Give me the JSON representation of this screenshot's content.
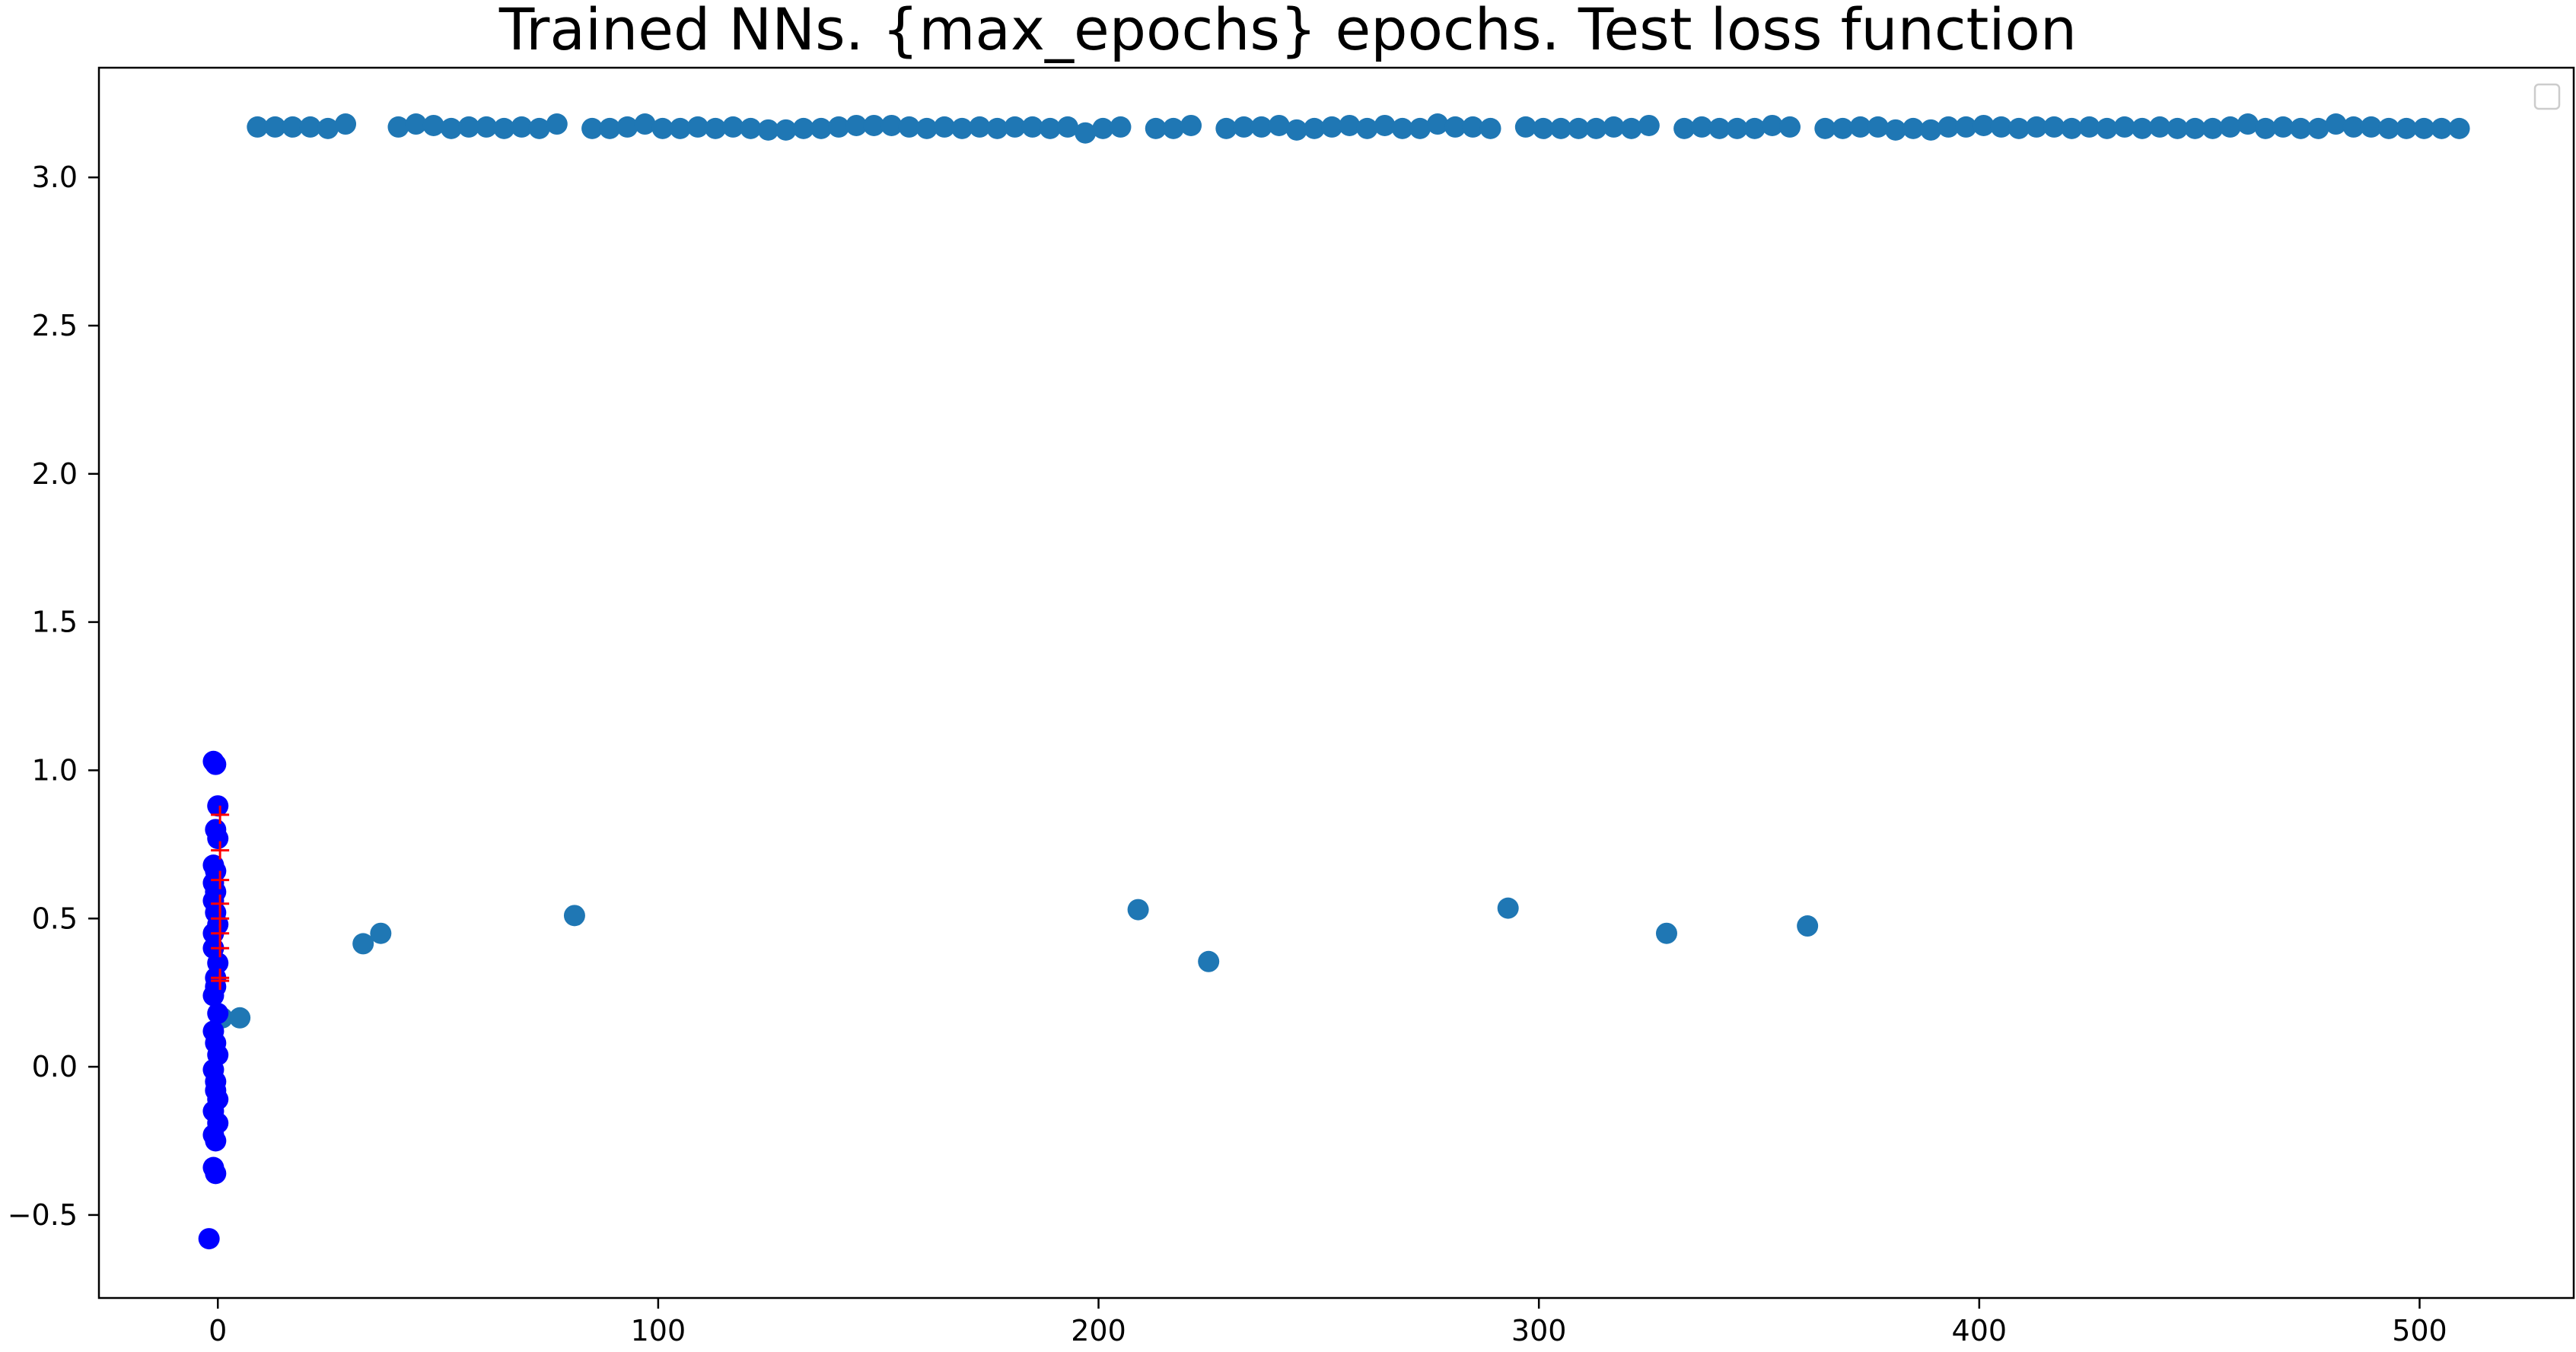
{
  "chart_data": {
    "type": "scatter",
    "title": "Trained NNs. {max_epochs} epochs. Test loss function",
    "xlabel": "",
    "ylabel": "",
    "xlim": [
      -27,
      535
    ],
    "ylim": [
      -0.78,
      3.37
    ],
    "x_ticks": [
      "0",
      "100",
      "200",
      "300",
      "400",
      "500"
    ],
    "x_tick_values": [
      0,
      100,
      200,
      300,
      400,
      500
    ],
    "y_ticks": [
      "−0.5",
      "0.0",
      "0.5",
      "1.0",
      "1.5",
      "2.0",
      "2.5",
      "3.0"
    ],
    "y_tick_values": [
      -0.5,
      0.0,
      0.5,
      1.0,
      1.5,
      2.0,
      2.5,
      3.0
    ],
    "grid": false,
    "legend": "top-right (empty)",
    "series": [
      {
        "color": "#1f77b4",
        "marker": "circle",
        "x": [
          9,
          13,
          17,
          21,
          25,
          29,
          41,
          45,
          49,
          53,
          57,
          61,
          65,
          69,
          73,
          77,
          85,
          89,
          93,
          97,
          101,
          105,
          109,
          113,
          117,
          121,
          125,
          129,
          133,
          137,
          141,
          145,
          149,
          153,
          157,
          161,
          165,
          169,
          173,
          177,
          181,
          185,
          189,
          193,
          197,
          201,
          205,
          213,
          217,
          221,
          229,
          233,
          237,
          241,
          245,
          249,
          253,
          257,
          261,
          265,
          269,
          273,
          277,
          281,
          285,
          289,
          297,
          301,
          305,
          309,
          313,
          317,
          321,
          325,
          333,
          337,
          341,
          345,
          349,
          353,
          357,
          365,
          369,
          373,
          377,
          381,
          385,
          389,
          393,
          397,
          401,
          405,
          409,
          413,
          417,
          421,
          425,
          429,
          433,
          437,
          441,
          445,
          449,
          453,
          457,
          461,
          465,
          469,
          473,
          477,
          481,
          485,
          489,
          493,
          497,
          501,
          505,
          509,
          1,
          5,
          33,
          37,
          81,
          209,
          225,
          293,
          329,
          361
        ],
        "y": [
          3.17,
          3.17,
          3.17,
          3.17,
          3.165,
          3.18,
          3.17,
          3.18,
          3.175,
          3.165,
          3.17,
          3.17,
          3.165,
          3.17,
          3.165,
          3.18,
          3.165,
          3.165,
          3.17,
          3.18,
          3.165,
          3.165,
          3.17,
          3.165,
          3.17,
          3.165,
          3.16,
          3.16,
          3.165,
          3.165,
          3.17,
          3.175,
          3.175,
          3.175,
          3.17,
          3.165,
          3.17,
          3.165,
          3.17,
          3.165,
          3.17,
          3.17,
          3.165,
          3.17,
          3.15,
          3.165,
          3.17,
          3.165,
          3.165,
          3.175,
          3.165,
          3.17,
          3.17,
          3.175,
          3.16,
          3.165,
          3.17,
          3.175,
          3.165,
          3.175,
          3.165,
          3.165,
          3.18,
          3.17,
          3.17,
          3.165,
          3.17,
          3.165,
          3.165,
          3.165,
          3.165,
          3.17,
          3.165,
          3.175,
          3.165,
          3.17,
          3.165,
          3.165,
          3.165,
          3.175,
          3.17,
          3.165,
          3.165,
          3.17,
          3.17,
          3.16,
          3.165,
          3.16,
          3.17,
          3.17,
          3.175,
          3.17,
          3.165,
          3.17,
          3.17,
          3.165,
          3.17,
          3.165,
          3.17,
          3.165,
          3.17,
          3.165,
          3.165,
          3.165,
          3.17,
          3.18,
          3.165,
          3.17,
          3.165,
          3.165,
          3.18,
          3.17,
          3.17,
          3.165,
          3.165,
          3.165,
          3.165,
          3.165,
          0.165,
          0.165,
          0.415,
          0.45,
          0.51,
          0.53,
          0.355,
          0.535,
          0.45,
          0.475
        ]
      },
      {
        "color": "#0000ff",
        "marker": "circle",
        "x": [
          -1,
          -0.5,
          0,
          -0.5,
          0,
          -1,
          -0.5,
          -1,
          -0.5,
          -1,
          -0.5,
          0,
          -1,
          -1,
          0,
          -0.5,
          -0.5,
          -1,
          0,
          -1,
          -0.5,
          0,
          -1,
          -0.5,
          -0.5,
          0,
          -1,
          -1,
          -0.5,
          -1,
          -0.5,
          0,
          -2
        ],
        "y": [
          1.03,
          1.02,
          0.88,
          0.8,
          0.77,
          0.68,
          0.66,
          0.62,
          0.59,
          0.56,
          0.52,
          0.48,
          0.45,
          0.4,
          0.35,
          0.3,
          0.27,
          0.24,
          0.18,
          0.12,
          0.08,
          0.04,
          -0.01,
          -0.05,
          -0.08,
          -0.11,
          -0.15,
          -0.23,
          -0.25,
          -0.34,
          -0.36,
          -0.19,
          -0.58
        ]
      },
      {
        "color": "#ff0000",
        "marker": "plus",
        "x": [
          0.5,
          0.5,
          0.5,
          0.5,
          0.5,
          0.5,
          0.5,
          0.5,
          0.5
        ],
        "y": [
          0.85,
          0.73,
          0.63,
          0.55,
          0.5,
          0.45,
          0.4,
          0.3,
          0.29
        ]
      }
    ]
  }
}
